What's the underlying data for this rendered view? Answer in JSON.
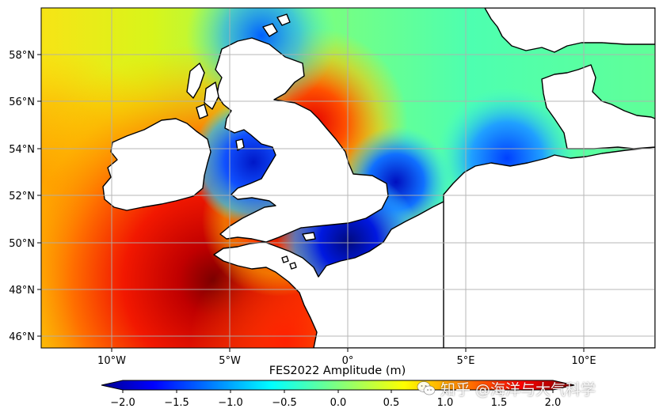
{
  "map": {
    "lon_range": [
      -13,
      13
    ],
    "lat_range": [
      45.5,
      60
    ],
    "lon_ticks": [
      "10°W",
      "5°W",
      "0°",
      "5°E",
      "10°E"
    ],
    "lat_ticks": [
      "58°N",
      "56°N",
      "54°N",
      "52°N",
      "50°N",
      "48°N",
      "46°N"
    ],
    "grid": true,
    "colormap": "jet",
    "field": "FES2022 tidal amplitude"
  },
  "colorbar": {
    "title": "FES2022 Amplitude (m)",
    "ticks": [
      "−2.0",
      "−1.5",
      "−1.0",
      "−0.5",
      "0.0",
      "0.5",
      "1.0",
      "1.5",
      "2.0"
    ],
    "range": [
      -2.0,
      2.0
    ],
    "extend": "both"
  },
  "watermark": {
    "text": "知乎 @海洋与大气科学",
    "icon": "wechat-icon"
  }
}
